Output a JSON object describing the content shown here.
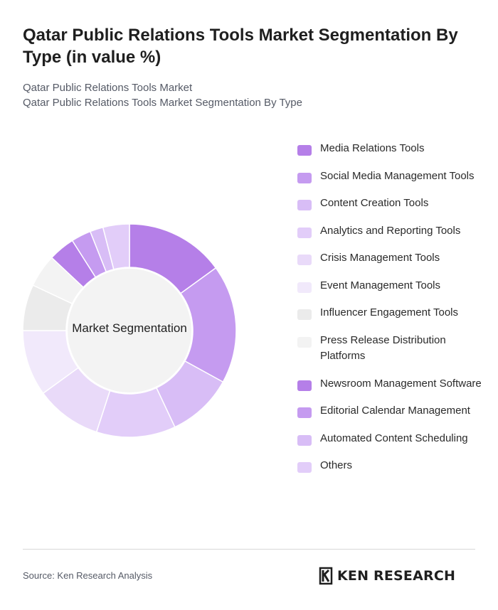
{
  "header": {
    "title": "Qatar Public Relations Tools Market Segmentation By Type (in value %)",
    "subtitle_line1": "Qatar Public Relations Tools Market",
    "subtitle_line2": "Qatar Public Relations Tools Market Segmentation By Type"
  },
  "chart_data": {
    "type": "pie",
    "center_label": "Market Segmentation",
    "unit": "%",
    "legend_position": "right",
    "categories": [
      "Media Relations Tools",
      "Social Media Management Tools",
      "Content Creation Tools",
      "Analytics and Reporting Tools",
      "Crisis Management Tools",
      "Event Management Tools",
      "Influencer Engagement Tools",
      "Press Release Distribution Platforms",
      "Newsroom Management Software",
      "Editorial Calendar Management",
      "Automated Content Scheduling",
      "Others"
    ],
    "values": [
      15,
      18,
      10,
      12,
      10,
      10,
      7,
      5,
      4,
      3,
      2,
      4
    ],
    "colors": [
      "#b57fe8",
      "#c59bf0",
      "#d8bdf6",
      "#e2cdf9",
      "#e9daf9",
      "#f1e9fb",
      "#ebebeb",
      "#f3f3f3",
      "#b57fe8",
      "#c59bf0",
      "#d8bdf6",
      "#e2cdf9"
    ]
  },
  "footer": {
    "source": "Source: Ken Research Analysis",
    "brand": "KEN RESEARCH",
    "logo_icon": "ken-research-logo-icon"
  }
}
